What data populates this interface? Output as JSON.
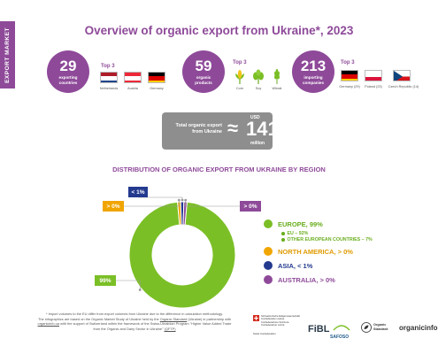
{
  "side_tab": "EXPORT MARKET",
  "title": "Overview of organic export from Ukraine*, 2023",
  "stats": [
    {
      "value": "29",
      "label_line1": "exporting",
      "label_line2": "countries"
    },
    {
      "value": "59",
      "label_line1": "organic",
      "label_line2": "products"
    },
    {
      "value": "213",
      "label_line1": "importing",
      "label_line2": "companies"
    }
  ],
  "top3_label": "Top 3",
  "top_countries": [
    "Netherlands",
    "Austria",
    "Germany"
  ],
  "top_products": [
    "Corn",
    "Soy",
    "Wheat"
  ],
  "top_company_countries": [
    "Germany (29)",
    "Poland (23)",
    "Czech Republic (14)"
  ],
  "total": {
    "label_line1": "Total organic export",
    "label_line2": "from Ukraine",
    "approx": "≈",
    "currency": "USD",
    "value": "141",
    "unit": "million"
  },
  "section_title": "DISTRIBUTION OF ORGANIC EXPORT FROM UKRAINE BY REGION",
  "chart_data": {
    "type": "pie",
    "categories": [
      "Europe",
      "North America",
      "Asia",
      "Australia"
    ],
    "values": [
      99,
      0.3,
      0.5,
      0.2
    ],
    "colors": [
      "#7bbf26",
      "#f0a500",
      "#243a8f",
      "#8e4a99"
    ],
    "data_labels": [
      "99%",
      "> 0%",
      "< 1%",
      "> 0%"
    ]
  },
  "legend": [
    {
      "label": "EUROPE, 99%",
      "color": "#7bbf26",
      "text_color": "#6aae1f"
    },
    {
      "label": "NORTH AMERICA, > 0%",
      "color": "#f0a500",
      "text_color": "#e09a00"
    },
    {
      "label": "ASIA, < 1%",
      "color": "#243a8f",
      "text_color": "#243a8f"
    },
    {
      "label": "AUSTRALIA, > 0%",
      "color": "#8e4a99",
      "text_color": "#8e4a99"
    }
  ],
  "legend_sub": [
    "EU – 92%",
    "OTHER EUROPEAN COUNTRIES – 7%"
  ],
  "footnote": {
    "line1": "* Import volumes to the EU differ from export volumes from Ukraine due to the difference in calculation methodology.",
    "line2_a": "The infographics are based on the Organic Market Study of Ukraine held by the",
    "line2_link": "Organic Standard",
    "line2_b": "(Ukraine) in partnership with",
    "line3_link": "organicinfo.ua",
    "line3_b": "with the support of Switzerland within the framework of the Swiss-Ukrainian Program \"Higher Value Added Trade",
    "line4_a": "from the Organic and Dairy Sector in Ukraine\"",
    "line4_link": "(QFTP)"
  },
  "logos": {
    "swiss_text1": "Schweizerische Eidgenossenschaft",
    "swiss_text2": "Confédération suisse",
    "swiss_text3": "Confederazione Svizzera",
    "swiss_text4": "Confederaziun svizra",
    "swiss_caption": "Swiss Confederation",
    "fibl": "FiBL",
    "safosco": "SAFOSO",
    "organic_standard_1": "Organic",
    "organic_standard_2": "Standard",
    "organicinfo": "organicinfo"
  }
}
